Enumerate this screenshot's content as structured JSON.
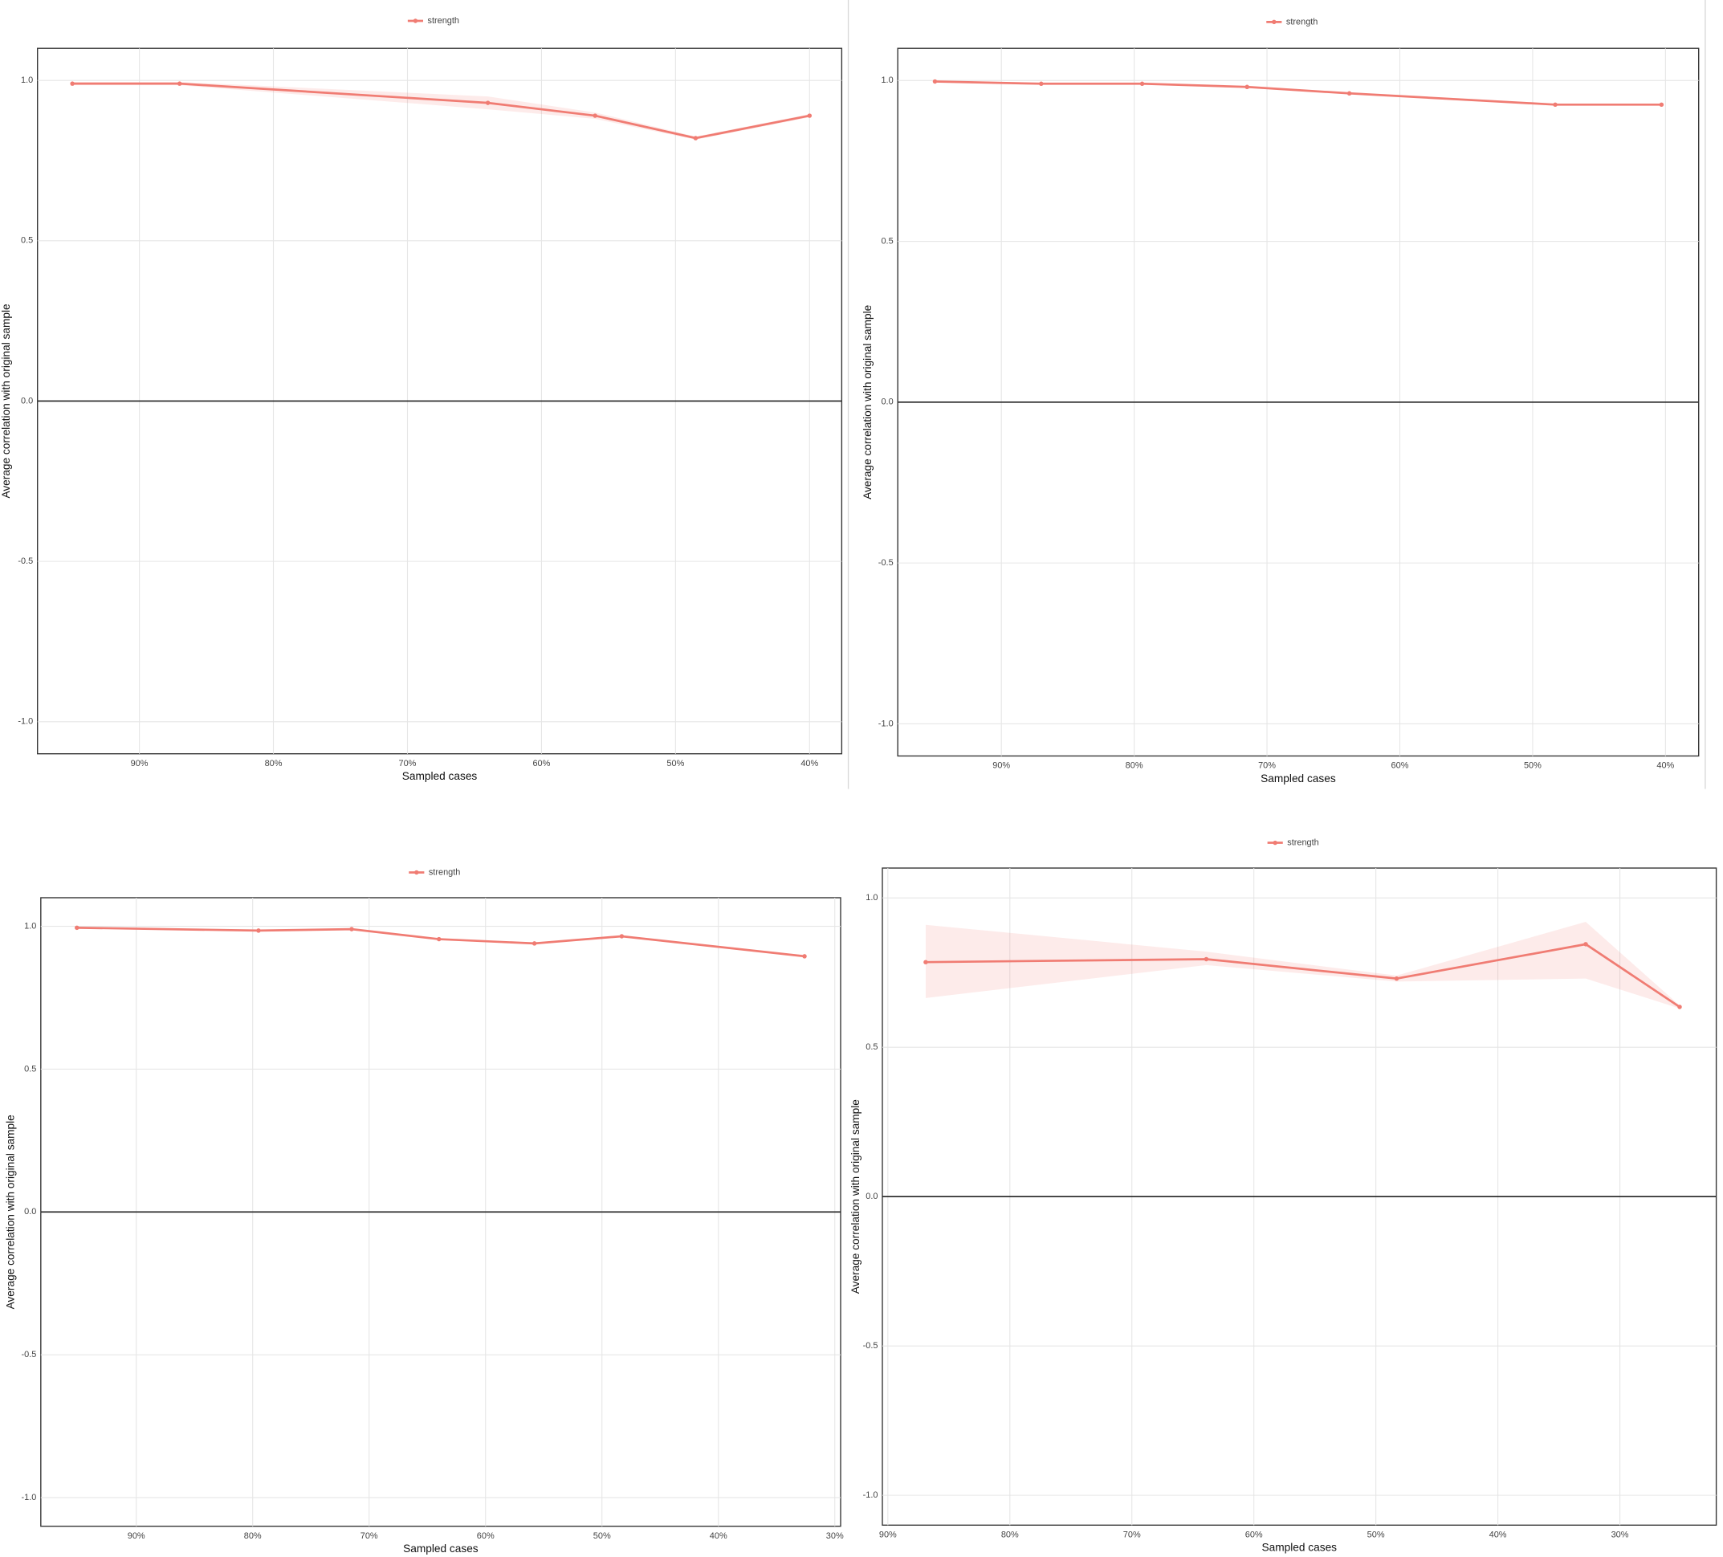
{
  "chart_data": [
    {
      "type": "line",
      "x_label": "Sampled cases",
      "y_label": "Average correlation with original sample",
      "x": [
        95,
        87,
        64,
        56,
        48.5,
        40
      ],
      "series": [
        {
          "name": "strength",
          "color": "#f07c73",
          "values": [
            0.99,
            0.99,
            0.93,
            0.89,
            0.82,
            0.89
          ],
          "lower": [
            0.985,
            0.985,
            0.91,
            0.88,
            0.815,
            0.885
          ],
          "upper": [
            0.995,
            0.995,
            0.95,
            0.9,
            0.825,
            0.895
          ]
        }
      ],
      "xlim": [
        97.6,
        37.6
      ],
      "ylim": [
        -1.1,
        1.1
      ],
      "xticks": [
        {
          "value": 90,
          "label": "90%"
        },
        {
          "value": 80,
          "label": "80%"
        },
        {
          "value": 70,
          "label": "70%"
        },
        {
          "value": 60,
          "label": "60%"
        },
        {
          "value": 50,
          "label": "50%"
        },
        {
          "value": 40,
          "label": "40%"
        }
      ],
      "yticks": [
        {
          "value": -1,
          "label": "-1.0"
        },
        {
          "value": -0.5,
          "label": "-0.5"
        },
        {
          "value": 0,
          "label": "0.0"
        },
        {
          "value": 0.5,
          "label": "0.5"
        },
        {
          "value": 1,
          "label": "1.0"
        }
      ],
      "hline": 0,
      "grid": true,
      "legend": "top"
    },
    {
      "type": "line",
      "x_label": "Sampled cases",
      "y_label": "Average correlation with original sample",
      "x": [
        95,
        87,
        79.4,
        71.5,
        63.8,
        48.3,
        40.3
      ],
      "series": [
        {
          "name": "strength",
          "color": "#f07c73",
          "values": [
            0.997,
            0.99,
            0.99,
            0.98,
            0.96,
            0.925,
            0.925
          ]
        }
      ],
      "xlim": [
        97.8,
        37.5
      ],
      "ylim": [
        -1.1,
        1.1
      ],
      "xticks": [
        {
          "value": 90,
          "label": "90%"
        },
        {
          "value": 80,
          "label": "80%"
        },
        {
          "value": 70,
          "label": "70%"
        },
        {
          "value": 60,
          "label": "60%"
        },
        {
          "value": 50,
          "label": "50%"
        },
        {
          "value": 40,
          "label": "40%"
        }
      ],
      "yticks": [
        {
          "value": -1,
          "label": "-1.0"
        },
        {
          "value": -0.5,
          "label": "-0.5"
        },
        {
          "value": 0,
          "label": "0.0"
        },
        {
          "value": 0.5,
          "label": "0.5"
        },
        {
          "value": 1,
          "label": "1.0"
        }
      ],
      "hline": 0,
      "grid": true,
      "legend": "top"
    },
    {
      "type": "line",
      "x_label": "Sampled cases",
      "y_label": "Average correlation with original sample",
      "x": [
        95.1,
        79.5,
        71.5,
        64,
        55.8,
        48.3,
        32.6
      ],
      "series": [
        {
          "name": "strength",
          "color": "#f07c73",
          "values": [
            0.995,
            0.985,
            0.99,
            0.955,
            0.94,
            0.965,
            0.895
          ]
        }
      ],
      "xlim": [
        98.2,
        29.5
      ],
      "ylim": [
        -1.1,
        1.1
      ],
      "xticks": [
        {
          "value": 90,
          "label": "90%"
        },
        {
          "value": 80,
          "label": "80%"
        },
        {
          "value": 70,
          "label": "70%"
        },
        {
          "value": 60,
          "label": "60%"
        },
        {
          "value": 50,
          "label": "50%"
        },
        {
          "value": 40,
          "label": "40%"
        },
        {
          "value": 30,
          "label": "30%"
        }
      ],
      "yticks": [
        {
          "value": -1,
          "label": "-1.0"
        },
        {
          "value": -0.5,
          "label": "-0.5"
        },
        {
          "value": 0,
          "label": "0.0"
        },
        {
          "value": 0.5,
          "label": "0.5"
        },
        {
          "value": 1,
          "label": "1.0"
        }
      ],
      "hline": 0,
      "grid": true,
      "legend": "top"
    },
    {
      "type": "line",
      "x_label": "Sampled cases",
      "y_label": "Average correlation with original sample",
      "x": [
        86.9,
        63.9,
        48.3,
        32.8,
        25.1
      ],
      "series": [
        {
          "name": "strength",
          "color": "#f07c73",
          "values": [
            0.785,
            0.795,
            0.73,
            0.845,
            0.635
          ],
          "lower": [
            0.665,
            0.775,
            0.72,
            0.73,
            0.63
          ],
          "upper": [
            0.91,
            0.82,
            0.74,
            0.92,
            0.64
          ]
        }
      ],
      "xlim": [
        90.45,
        22.1
      ],
      "ylim": [
        -1.1,
        1.1
      ],
      "xticks": [
        {
          "value": 90,
          "label": "90%"
        },
        {
          "value": 80,
          "label": "80%"
        },
        {
          "value": 70,
          "label": "70%"
        },
        {
          "value": 60,
          "label": "60%"
        },
        {
          "value": 50,
          "label": "50%"
        },
        {
          "value": 40,
          "label": "40%"
        },
        {
          "value": 30,
          "label": "30%"
        }
      ],
      "yticks": [
        {
          "value": -1,
          "label": "-1.0"
        },
        {
          "value": -0.5,
          "label": "-0.5"
        },
        {
          "value": 0,
          "label": "0.0"
        },
        {
          "value": 0.5,
          "label": "0.5"
        },
        {
          "value": 1,
          "label": "1.0"
        }
      ],
      "hline": 0,
      "grid": true,
      "legend": "top"
    }
  ]
}
